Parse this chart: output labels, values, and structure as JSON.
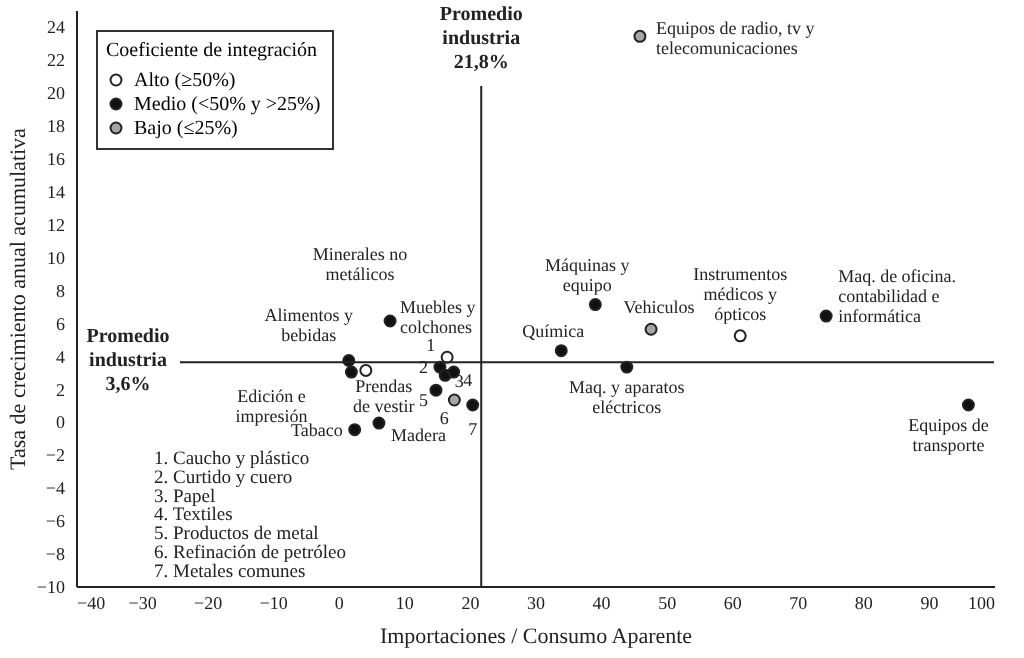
{
  "chart_data": {
    "type": "scatter",
    "xlabel": "Importaciones / Consumo Aparente",
    "ylabel": "Tasa de crecimiento anual acumulativa",
    "legend_title": "Coeficiente de integración",
    "legend": "top left",
    "marker": "circle",
    "xlim": [
      -40,
      100
    ],
    "xticks": [
      -40,
      -30,
      -20,
      -10,
      0,
      10,
      20,
      30,
      40,
      50,
      60,
      70,
      80,
      90,
      100
    ],
    "ylim": [
      -10,
      25
    ],
    "yticks": [
      -10,
      -8,
      -6,
      -4,
      -2,
      0,
      2,
      4,
      6,
      8,
      10,
      12,
      14,
      16,
      18,
      20,
      22,
      24
    ],
    "series": [
      {
        "name": "Alto (≥50%)",
        "color": "#ffffff",
        "x": [
          61.3,
          4.2,
          16.6
        ],
        "values": [
          5.2,
          3.1,
          3.9
        ]
      },
      {
        "name": "Medio (<50% y >25%)",
        "color": "#111111",
        "x": [
          39.2,
          74.4,
          34.0,
          44.0,
          96.1,
          7.9,
          1.6,
          2.0,
          2.5,
          6.2,
          15.5,
          16.3,
          17.6,
          14.9,
          20.5
        ],
        "values": [
          7.1,
          6.4,
          4.3,
          3.3,
          1.0,
          6.1,
          3.7,
          3.0,
          -0.5,
          -0.1,
          3.3,
          2.8,
          3.0,
          1.9,
          1.0
        ]
      },
      {
        "name": "Bajo (≤25%)",
        "color": "#a6a6a6",
        "x": [
          46.0,
          47.7,
          17.7
        ],
        "values": [
          23.4,
          5.6,
          1.3
        ]
      }
    ],
    "ref_lines": [
      {
        "axis": "x",
        "value": 21.8,
        "label": "Promedio\nindustria\n21,8%"
      },
      {
        "axis": "y",
        "value": 3.6,
        "label": "Promedio\nindustria\n3,6%"
      }
    ],
    "annotations": [
      {
        "text": "Equipos de radio, tv y\ntelecomunicaciones",
        "x": 46.0,
        "y": 23.4
      },
      {
        "text": "Máquinas y\nequipo",
        "x": 39.2,
        "y": 7.1
      },
      {
        "text": "Vehiculos",
        "x": 47.7,
        "y": 5.6
      },
      {
        "text": "Instrumentos\nmédicos y\nópticos",
        "x": 61.3,
        "y": 5.2
      },
      {
        "text": "Maq. de oficina.\ncontabilidad e\ninformática",
        "x": 74.4,
        "y": 6.4
      },
      {
        "text": "Química",
        "x": 34.0,
        "y": 4.3
      },
      {
        "text": "Maq. y aparatos\neléctricos",
        "x": 44.0,
        "y": 3.3
      },
      {
        "text": "Equipos de\ntransporte",
        "x": 96.1,
        "y": 1.0
      },
      "Minerales no\nmetálicos",
      {
        "text": "Muebles y\ncolchones",
        "x": 7.9,
        "y": 6.1
      },
      {
        "text": "Alimentos y\nbebidas",
        "x": 1.6,
        "y": 3.7
      },
      {
        "text": "Edición e\nimpresión",
        "x": 2.0,
        "y": 3.0
      },
      {
        "text": "Prendas\nde vestir",
        "x": 4.2,
        "y": 3.1
      },
      {
        "text": "Tabaco",
        "x": 2.5,
        "y": -0.5
      },
      {
        "text": "Madera",
        "x": 6.2,
        "y": -0.1
      },
      {
        "text": "1",
        "x": 16.6,
        "y": 3.9
      },
      {
        "text": "2",
        "x": 15.5,
        "y": 3.3
      },
      {
        "text": "3",
        "x": 16.3,
        "y": 2.8
      },
      {
        "text": "4",
        "x": 17.6,
        "y": 3.0
      },
      {
        "text": "5",
        "x": 14.9,
        "y": 1.9
      },
      {
        "text": "6",
        "x": 17.7,
        "y": 1.3
      },
      {
        "text": "7",
        "x": 20.5,
        "y": 1.0
      },
      "1. Caucho y plástico",
      "2. Curtido y cuero",
      "3. Papel",
      "4. Textiles",
      "5. Productos de metal",
      "6. Refinación de petróleo",
      "7. Metales comunes"
    ]
  }
}
